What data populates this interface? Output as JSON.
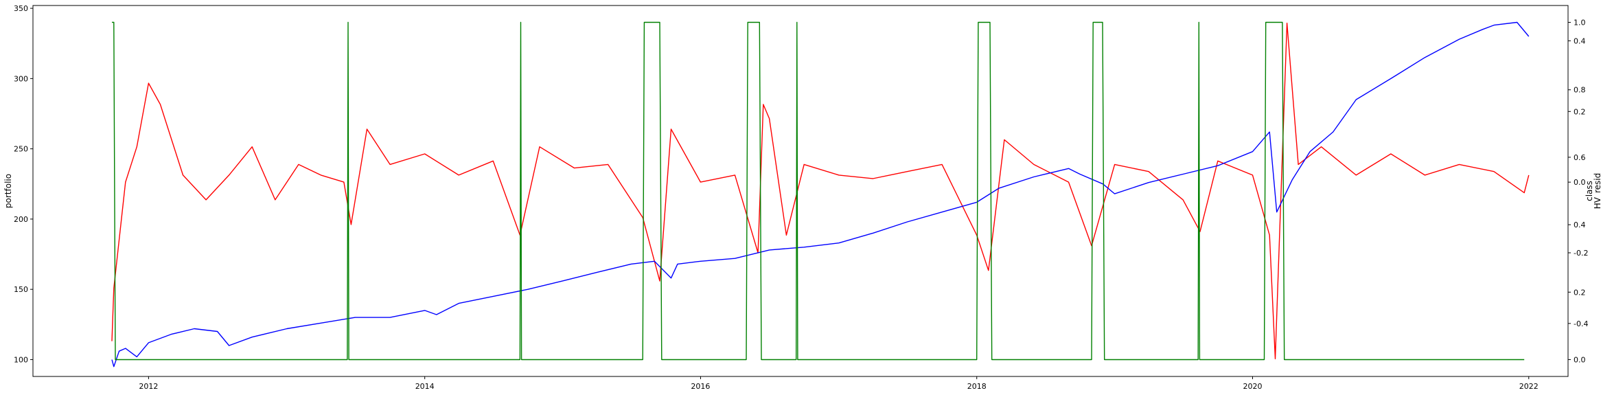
{
  "chart_data": {
    "type": "line",
    "x_axis": {
      "type": "date",
      "range": [
        "2011-03-01",
        "2022-04-15"
      ],
      "ticks": [
        "2012",
        "2014",
        "2016",
        "2018",
        "2020",
        "2022"
      ]
    },
    "left_axis": {
      "label": "portfolio",
      "range": [
        88,
        352
      ],
      "ticks": [
        "100",
        "150",
        "200",
        "250",
        "300",
        "350"
      ]
    },
    "right_axis_1": {
      "label": "class",
      "range": [
        -0.05,
        1.05
      ],
      "ticks": [
        "0.0",
        "0.2",
        "0.4",
        "0.6",
        "0.8",
        "1.0"
      ]
    },
    "right_axis_2": {
      "label": "HV_resid",
      "range": [
        -0.55,
        0.5
      ],
      "ticks": [
        "-0.4",
        "-0.2",
        "0.0",
        "0.2",
        "0.4"
      ]
    },
    "grid": false,
    "legend": "none",
    "series": [
      {
        "axis": "left",
        "color": "#0000ff",
        "points": [
          [
            "2011-09-26",
            100
          ],
          [
            "2011-10-01",
            95
          ],
          [
            "2011-10-15",
            106
          ],
          [
            "2011-11-01",
            108
          ],
          [
            "2011-12-01",
            102
          ],
          [
            "2012-01-01",
            112
          ],
          [
            "2012-03-01",
            118
          ],
          [
            "2012-05-01",
            122
          ],
          [
            "2012-07-01",
            120
          ],
          [
            "2012-08-01",
            110
          ],
          [
            "2012-10-01",
            116
          ],
          [
            "2013-01-01",
            122
          ],
          [
            "2013-04-01",
            126
          ],
          [
            "2013-07-01",
            130
          ],
          [
            "2013-10-01",
            130
          ],
          [
            "2014-01-01",
            135
          ],
          [
            "2014-02-01",
            132
          ],
          [
            "2014-04-01",
            140
          ],
          [
            "2014-07-01",
            145
          ],
          [
            "2014-10-01",
            150
          ],
          [
            "2015-01-01",
            156
          ],
          [
            "2015-04-01",
            162
          ],
          [
            "2015-07-01",
            168
          ],
          [
            "2015-09-01",
            170
          ],
          [
            "2015-10-15",
            158
          ],
          [
            "2015-11-01",
            168
          ],
          [
            "2016-01-01",
            170
          ],
          [
            "2016-04-01",
            172
          ],
          [
            "2016-07-01",
            178
          ],
          [
            "2016-10-01",
            180
          ],
          [
            "2017-01-01",
            183
          ],
          [
            "2017-04-01",
            190
          ],
          [
            "2017-07-01",
            198
          ],
          [
            "2017-10-01",
            205
          ],
          [
            "2018-01-01",
            212
          ],
          [
            "2018-03-01",
            222
          ],
          [
            "2018-06-01",
            230
          ],
          [
            "2018-09-01",
            236
          ],
          [
            "2018-10-01",
            232
          ],
          [
            "2018-12-01",
            225
          ],
          [
            "2019-01-01",
            218
          ],
          [
            "2019-04-01",
            226
          ],
          [
            "2019-07-01",
            232
          ],
          [
            "2019-10-01",
            238
          ],
          [
            "2020-01-01",
            248
          ],
          [
            "2020-02-15",
            262
          ],
          [
            "2020-03-05",
            205
          ],
          [
            "2020-04-15",
            228
          ],
          [
            "2020-06-01",
            248
          ],
          [
            "2020-08-01",
            262
          ],
          [
            "2020-10-01",
            285
          ],
          [
            "2021-01-01",
            300
          ],
          [
            "2021-04-01",
            315
          ],
          [
            "2021-07-01",
            328
          ],
          [
            "2021-09-01",
            335
          ],
          [
            "2021-10-01",
            338
          ],
          [
            "2021-12-01",
            340
          ],
          [
            "2022-01-01",
            330
          ]
        ]
      },
      {
        "axis": "right_2",
        "color": "#ff0000",
        "points": [
          [
            "2011-09-26",
            -0.45
          ],
          [
            "2011-10-01",
            -0.3
          ],
          [
            "2011-11-01",
            0.0
          ],
          [
            "2011-12-01",
            0.1
          ],
          [
            "2012-01-01",
            0.28
          ],
          [
            "2012-02-01",
            0.22
          ],
          [
            "2012-04-01",
            0.02
          ],
          [
            "2012-06-01",
            -0.05
          ],
          [
            "2012-08-01",
            0.02
          ],
          [
            "2012-10-01",
            0.1
          ],
          [
            "2012-12-01",
            -0.05
          ],
          [
            "2013-02-01",
            0.05
          ],
          [
            "2013-04-01",
            0.02
          ],
          [
            "2013-06-01",
            0.0
          ],
          [
            "2013-06-20",
            -0.12
          ],
          [
            "2013-08-01",
            0.15
          ],
          [
            "2013-10-01",
            0.05
          ],
          [
            "2014-01-01",
            0.08
          ],
          [
            "2014-04-01",
            0.02
          ],
          [
            "2014-07-01",
            0.06
          ],
          [
            "2014-09-10",
            -0.15
          ],
          [
            "2014-11-01",
            0.1
          ],
          [
            "2015-02-01",
            0.04
          ],
          [
            "2015-05-01",
            0.05
          ],
          [
            "2015-08-01",
            -0.1
          ],
          [
            "2015-09-15",
            -0.28
          ],
          [
            "2015-10-15",
            0.15
          ],
          [
            "2016-01-01",
            0.0
          ],
          [
            "2016-04-01",
            0.02
          ],
          [
            "2016-06-01",
            -0.2
          ],
          [
            "2016-06-15",
            0.22
          ],
          [
            "2016-07-01",
            0.18
          ],
          [
            "2016-08-15",
            -0.15
          ],
          [
            "2016-10-01",
            0.05
          ],
          [
            "2017-01-01",
            0.02
          ],
          [
            "2017-04-01",
            0.01
          ],
          [
            "2017-07-01",
            0.03
          ],
          [
            "2017-10-01",
            0.05
          ],
          [
            "2018-01-01",
            -0.15
          ],
          [
            "2018-02-01",
            -0.25
          ],
          [
            "2018-03-15",
            0.12
          ],
          [
            "2018-06-01",
            0.05
          ],
          [
            "2018-09-01",
            0.0
          ],
          [
            "2018-11-01",
            -0.18
          ],
          [
            "2019-01-01",
            0.05
          ],
          [
            "2019-04-01",
            0.03
          ],
          [
            "2019-07-01",
            -0.05
          ],
          [
            "2019-08-15",
            -0.14
          ],
          [
            "2019-10-01",
            0.06
          ],
          [
            "2020-01-01",
            0.02
          ],
          [
            "2020-02-15",
            -0.15
          ],
          [
            "2020-03-01",
            -0.5
          ],
          [
            "2020-04-01",
            0.45
          ],
          [
            "2020-05-01",
            0.05
          ],
          [
            "2020-07-01",
            0.1
          ],
          [
            "2020-10-01",
            0.02
          ],
          [
            "2021-01-01",
            0.08
          ],
          [
            "2021-04-01",
            0.02
          ],
          [
            "2021-07-01",
            0.05
          ],
          [
            "2021-10-01",
            0.03
          ],
          [
            "2021-12-20",
            -0.03
          ],
          [
            "2022-01-01",
            0.02
          ]
        ]
      },
      {
        "axis": "right_1",
        "color": "#008000",
        "points": [
          [
            "2011-09-26",
            1
          ],
          [
            "2011-10-01",
            1
          ],
          [
            "2011-10-05",
            0
          ],
          [
            "2013-06-10",
            0
          ],
          [
            "2013-06-12",
            1
          ],
          [
            "2013-06-14",
            0
          ],
          [
            "2014-09-10",
            0
          ],
          [
            "2014-09-12",
            1
          ],
          [
            "2014-09-14",
            0
          ],
          [
            "2015-08-01",
            0
          ],
          [
            "2015-08-05",
            1
          ],
          [
            "2015-09-15",
            1
          ],
          [
            "2015-09-20",
            0
          ],
          [
            "2016-05-01",
            0
          ],
          [
            "2016-05-05",
            1
          ],
          [
            "2016-06-05",
            1
          ],
          [
            "2016-06-10",
            0
          ],
          [
            "2016-09-10",
            0
          ],
          [
            "2016-09-12",
            1
          ],
          [
            "2016-09-14",
            0
          ],
          [
            "2018-01-01",
            0
          ],
          [
            "2018-01-05",
            1
          ],
          [
            "2018-02-05",
            1
          ],
          [
            "2018-02-10",
            0
          ],
          [
            "2018-11-01",
            0
          ],
          [
            "2018-11-05",
            1
          ],
          [
            "2018-11-30",
            1
          ],
          [
            "2018-12-05",
            0
          ],
          [
            "2019-08-10",
            0
          ],
          [
            "2019-08-12",
            1
          ],
          [
            "2019-08-14",
            0
          ],
          [
            "2020-02-01",
            0
          ],
          [
            "2020-02-05",
            1
          ],
          [
            "2020-03-20",
            1
          ],
          [
            "2020-03-25",
            0
          ],
          [
            "2021-12-20",
            0
          ]
        ]
      }
    ]
  }
}
